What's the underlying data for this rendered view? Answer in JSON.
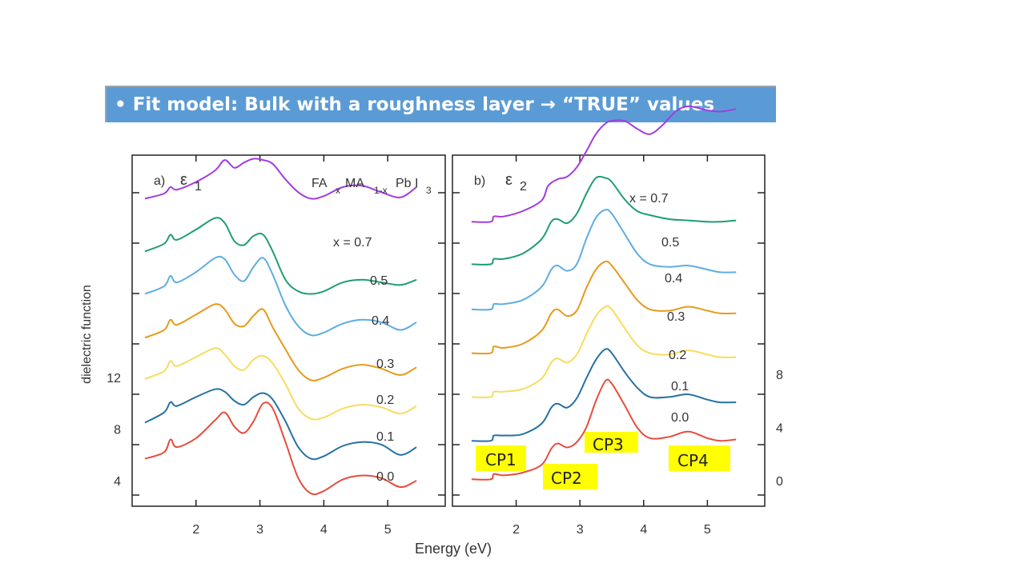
{
  "slide": {
    "banner_text": "• Fit model: Bulk with a roughness layer → “TRUE” values"
  },
  "chart_data": [
    {
      "type": "line",
      "panel_label": "a)",
      "title": "ε",
      "title_sub": "1",
      "compound": {
        "parts": [
          "FA",
          "x",
          "MA",
          "1-x",
          "Pb I",
          "3"
        ]
      },
      "x_label": "Energy (eV)",
      "y_label": "dielectric function",
      "xlim": [
        1.0,
        5.9
      ],
      "x_ticks": [
        2,
        3,
        4,
        5
      ],
      "y_ticks": [
        4,
        8,
        12
      ],
      "series": [
        {
          "name": "0.0",
          "color": "#e74c3c",
          "x": [
            1.2,
            1.5,
            1.6,
            1.7,
            2.0,
            2.3,
            2.45,
            2.6,
            2.75,
            2.9,
            3.05,
            3.2,
            3.4,
            3.6,
            3.8,
            4.0,
            4.3,
            4.6,
            4.9,
            5.2,
            5.45
          ],
          "y": [
            5.7,
            6.2,
            7.2,
            6.6,
            7.3,
            8.7,
            9.3,
            8.2,
            7.7,
            8.6,
            10.0,
            9.6,
            7.0,
            4.2,
            3.0,
            3.2,
            4.1,
            4.4,
            4.2,
            3.5,
            4.0
          ]
        },
        {
          "name": "0.1",
          "color": "#2471a3",
          "x": [
            1.2,
            1.5,
            1.6,
            1.7,
            2.0,
            2.3,
            2.45,
            2.6,
            2.75,
            2.9,
            3.05,
            3.2,
            3.4,
            3.6,
            3.8,
            4.0,
            4.3,
            4.6,
            4.9,
            5.2,
            5.45
          ],
          "y": [
            8.5,
            9.3,
            10.1,
            9.8,
            10.5,
            11.1,
            10.9,
            10.2,
            9.9,
            10.5,
            10.8,
            10.3,
            8.6,
            6.6,
            5.7,
            5.9,
            6.7,
            7.0,
            6.8,
            6.0,
            6.6
          ]
        },
        {
          "name": "0.2",
          "color": "#f7dc5e",
          "x": [
            1.2,
            1.5,
            1.6,
            1.7,
            2.0,
            2.3,
            2.45,
            2.6,
            2.75,
            2.9,
            3.05,
            3.2,
            3.4,
            3.6,
            3.8,
            4.0,
            4.3,
            4.6,
            4.9,
            5.2,
            5.45
          ],
          "y": [
            11.9,
            12.5,
            13.3,
            12.9,
            13.6,
            14.3,
            13.8,
            12.9,
            12.6,
            13.4,
            13.7,
            13.1,
            11.5,
            9.6,
            8.8,
            8.9,
            9.6,
            9.9,
            9.7,
            9.2,
            9.8
          ]
        },
        {
          "name": "0.3",
          "color": "#e69b1c",
          "x": [
            1.2,
            1.5,
            1.6,
            1.7,
            2.0,
            2.3,
            2.45,
            2.6,
            2.75,
            2.9,
            3.05,
            3.2,
            3.4,
            3.6,
            3.8,
            4.0,
            4.3,
            4.6,
            4.9,
            5.2,
            5.45
          ],
          "y": [
            15.1,
            15.7,
            16.5,
            16.1,
            16.9,
            17.7,
            17.3,
            16.2,
            16.0,
            16.8,
            17.3,
            15.9,
            14.2,
            12.6,
            11.8,
            12.0,
            12.7,
            13.0,
            12.7,
            12.2,
            12.8
          ]
        },
        {
          "name": "0.4",
          "color": "#5dade2",
          "x": [
            1.2,
            1.5,
            1.6,
            1.7,
            2.0,
            2.3,
            2.45,
            2.6,
            2.75,
            2.9,
            3.05,
            3.2,
            3.4,
            3.6,
            3.8,
            4.0,
            4.3,
            4.6,
            4.9,
            5.2,
            5.45
          ],
          "y": [
            18.5,
            19.1,
            19.9,
            19.4,
            20.2,
            21.3,
            21.2,
            20.0,
            19.5,
            20.6,
            21.3,
            20.0,
            17.6,
            16.0,
            15.3,
            15.5,
            16.2,
            16.5,
            16.3,
            15.7,
            16.3
          ]
        },
        {
          "name": "0.5",
          "color": "#1e9e6e",
          "x": [
            1.2,
            1.5,
            1.6,
            1.7,
            2.0,
            2.3,
            2.45,
            2.6,
            2.75,
            2.9,
            3.05,
            3.2,
            3.4,
            3.6,
            3.8,
            4.0,
            4.3,
            4.6,
            4.9,
            5.2,
            5.45
          ],
          "y": [
            21.8,
            22.4,
            23.1,
            22.7,
            23.5,
            24.4,
            24.0,
            22.6,
            22.3,
            23.0,
            23.1,
            21.8,
            19.6,
            18.7,
            18.5,
            18.7,
            19.4,
            19.6,
            19.4,
            19.2,
            19.6
          ]
        },
        {
          "name": "0.7",
          "color": "#a33be0",
          "x": [
            1.2,
            1.5,
            1.6,
            1.7,
            2.0,
            2.3,
            2.45,
            2.6,
            2.75,
            2.9,
            3.05,
            3.2,
            3.4,
            3.6,
            3.8,
            4.0,
            4.3,
            4.6,
            4.9,
            5.2,
            5.45
          ],
          "y": [
            25.9,
            26.3,
            26.8,
            26.6,
            27.2,
            28.1,
            28.9,
            28.3,
            28.7,
            29.0,
            28.9,
            28.6,
            27.4,
            26.4,
            25.9,
            26.1,
            26.8,
            26.9,
            26.4,
            26.0,
            26.8
          ]
        }
      ],
      "series_labels": [
        "x =  0.7",
        "0.5",
        "0.4",
        "0.3",
        "0.2",
        "0.1",
        "0.0"
      ]
    },
    {
      "type": "line",
      "panel_label": "b)",
      "title": "ε",
      "title_sub": "2",
      "x_label": "Energy (eV)",
      "xlim": [
        1.0,
        5.9
      ],
      "x_ticks": [
        2,
        3,
        4,
        5
      ],
      "y_ticks_right": [
        0,
        4,
        8
      ],
      "series": [
        {
          "name": "0.0",
          "color": "#e74c3c",
          "x": [
            1.3,
            1.6,
            1.65,
            1.8,
            2.1,
            2.4,
            2.55,
            2.65,
            2.8,
            2.95,
            3.1,
            3.25,
            3.4,
            3.5,
            3.7,
            3.9,
            4.1,
            4.4,
            4.7,
            5.0,
            5.2,
            5.45
          ],
          "y": [
            0.1,
            0.1,
            0.5,
            0.4,
            0.6,
            1.2,
            2.4,
            2.8,
            2.5,
            2.9,
            4.0,
            6.0,
            7.5,
            7.3,
            5.7,
            4.0,
            3.2,
            3.3,
            3.7,
            3.2,
            3.0,
            3.1
          ]
        },
        {
          "name": "0.1",
          "color": "#2471a3",
          "x": [
            1.3,
            1.6,
            1.65,
            1.8,
            2.1,
            2.4,
            2.55,
            2.65,
            2.8,
            2.95,
            3.1,
            3.25,
            3.4,
            3.5,
            3.7,
            3.9,
            4.1,
            4.4,
            4.7,
            5.0,
            5.2,
            5.45
          ],
          "y": [
            3.0,
            3.0,
            3.4,
            3.4,
            3.5,
            4.3,
            5.5,
            5.8,
            5.5,
            6.2,
            7.7,
            9.1,
            9.9,
            9.6,
            8.2,
            7.0,
            6.3,
            6.3,
            6.5,
            6.1,
            5.9,
            5.9
          ]
        },
        {
          "name": "0.2",
          "color": "#f7dc5e",
          "x": [
            1.3,
            1.6,
            1.65,
            1.8,
            2.1,
            2.4,
            2.55,
            2.65,
            2.8,
            2.95,
            3.1,
            3.25,
            3.4,
            3.5,
            3.7,
            3.9,
            4.1,
            4.4,
            4.7,
            5.0,
            5.2,
            5.45
          ],
          "y": [
            6.3,
            6.3,
            6.7,
            6.7,
            6.9,
            7.7,
            8.9,
            9.2,
            8.9,
            9.5,
            11.0,
            12.4,
            13.1,
            12.9,
            11.5,
            10.2,
            9.6,
            9.5,
            9.8,
            9.5,
            9.3,
            9.3
          ]
        },
        {
          "name": "0.3",
          "color": "#e69b1c",
          "x": [
            1.3,
            1.6,
            1.65,
            1.8,
            2.1,
            2.4,
            2.55,
            2.65,
            2.8,
            2.95,
            3.1,
            3.25,
            3.4,
            3.5,
            3.7,
            3.9,
            4.1,
            4.4,
            4.7,
            5.0,
            5.2,
            5.45
          ],
          "y": [
            9.6,
            9.6,
            10.1,
            10.0,
            10.3,
            11.3,
            12.6,
            12.9,
            12.4,
            12.8,
            14.5,
            15.9,
            16.5,
            16.2,
            14.9,
            13.6,
            12.9,
            12.8,
            13.1,
            12.8,
            12.6,
            12.6
          ]
        },
        {
          "name": "0.4",
          "color": "#5dade2",
          "x": [
            1.3,
            1.6,
            1.65,
            1.8,
            2.1,
            2.4,
            2.55,
            2.65,
            2.8,
            2.95,
            3.1,
            3.25,
            3.4,
            3.5,
            3.7,
            3.9,
            4.1,
            4.4,
            4.7,
            5.0,
            5.2,
            5.45
          ],
          "y": [
            12.9,
            12.9,
            13.3,
            13.3,
            13.6,
            14.6,
            15.9,
            16.2,
            15.8,
            16.3,
            18.2,
            19.8,
            20.4,
            20.1,
            18.6,
            17.1,
            16.3,
            16.1,
            16.2,
            15.9,
            15.7,
            15.7
          ]
        },
        {
          "name": "0.5",
          "color": "#1e9e6e",
          "x": [
            1.3,
            1.6,
            1.65,
            1.8,
            2.1,
            2.4,
            2.55,
            2.65,
            2.8,
            2.95,
            3.1,
            3.25,
            3.4,
            3.5,
            3.7,
            3.9,
            4.1,
            4.4,
            4.7,
            5.0,
            5.2,
            5.45
          ],
          "y": [
            16.3,
            16.3,
            16.7,
            16.7,
            17.1,
            18.2,
            19.5,
            19.7,
            19.4,
            20.1,
            21.6,
            22.8,
            22.8,
            22.5,
            21.2,
            20.3,
            20.0,
            19.7,
            19.6,
            19.5,
            19.5,
            19.6
          ]
        },
        {
          "name": "0.7",
          "color": "#a33be0",
          "x": [
            1.3,
            1.6,
            1.65,
            1.8,
            2.1,
            2.4,
            2.5,
            2.65,
            2.8,
            2.95,
            3.1,
            3.25,
            3.4,
            3.5,
            3.7,
            3.9,
            4.1,
            4.3,
            4.5,
            4.7,
            5.0,
            5.2,
            5.45
          ],
          "y": [
            19.5,
            19.5,
            19.9,
            19.9,
            20.3,
            21.1,
            22.2,
            22.7,
            22.9,
            23.6,
            24.8,
            26.1,
            26.9,
            27.1,
            27.1,
            26.5,
            26.1,
            26.8,
            27.8,
            28.2,
            27.9,
            27.8,
            28.0
          ]
        }
      ],
      "series_labels": [
        "x =  0.7",
        "0.5",
        "0.4",
        "0.3",
        "0.2",
        "0.1",
        "0.0"
      ],
      "annotations": [
        "CP1",
        "CP2",
        "CP3",
        "CP4"
      ]
    }
  ]
}
